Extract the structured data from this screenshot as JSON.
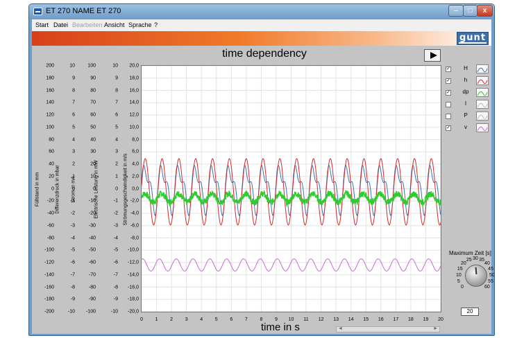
{
  "window": {
    "title": "ET 270 NAME ET 270",
    "min_label": "–",
    "max_label": "□",
    "close_label": "x"
  },
  "menu": {
    "items": [
      {
        "label": "Start",
        "enabled": true
      },
      {
        "label": "Datei",
        "enabled": true
      },
      {
        "label": "Bearbeiten",
        "enabled": false
      },
      {
        "label": "Ansicht",
        "enabled": true
      },
      {
        "label": "Sprache",
        "enabled": true
      },
      {
        "label": "?",
        "enabled": true
      }
    ]
  },
  "logo": {
    "text": "gunt"
  },
  "chart_data": {
    "type": "line",
    "title": "time dependency",
    "xlabel": "time in s",
    "xlim": [
      0,
      20
    ],
    "x_ticks": [
      "0",
      "1",
      "2",
      "3",
      "4",
      "5",
      "6",
      "7",
      "8",
      "9",
      "10",
      "11",
      "12",
      "13",
      "14",
      "15",
      "16",
      "17",
      "18",
      "19",
      "20"
    ],
    "y_axes": [
      {
        "label": "Füllstand  in mm",
        "ticks": [
          "200",
          "180",
          "160",
          "140",
          "120",
          "100",
          "80",
          "60",
          "40",
          "20",
          "0",
          "-20",
          "-40",
          "-60",
          "-80",
          "-100",
          "-120",
          "-140",
          "-160",
          "-180",
          "-200"
        ]
      },
      {
        "label": "Differenzdruck  in mbar",
        "ticks": [
          "10",
          "9",
          "8",
          "7",
          "6",
          "5",
          "4",
          "3",
          "2",
          "1",
          "0",
          "-1",
          "-2",
          "-3",
          "-4",
          "-5",
          "-6",
          "-7",
          "-8",
          "-9",
          "-10"
        ]
      },
      {
        "label": "Strom  in mA",
        "ticks": [
          "100",
          "90",
          "80",
          "70",
          "60",
          "50",
          "40",
          "30",
          "20",
          "10",
          "0",
          "-10",
          "-20",
          "-30",
          "-40",
          "-50",
          "-60",
          "-70",
          "-80",
          "-90",
          "-100"
        ]
      },
      {
        "label": "Electrische Leistung in mW",
        "ticks": [
          "10",
          "9",
          "8",
          "7",
          "6",
          "5",
          "4",
          "3",
          "2",
          "1",
          "0",
          "-1",
          "-2",
          "-3",
          "-4",
          "-5",
          "-6",
          "-7",
          "-8",
          "-9",
          "-10"
        ]
      },
      {
        "label": "Strömungsgeschwindigkeit in m/s",
        "ticks": [
          "20,0",
          "18,0",
          "16,0",
          "14,0",
          "12,0",
          "10,0",
          "8,0",
          "6,0",
          "4,0",
          "2,0",
          "0,0",
          "-2,0",
          "-4,0",
          "-6,0",
          "-8,0",
          "-10,0",
          "-12,0",
          "-14,0",
          "-16,0",
          "-18,0",
          "-20,0"
        ]
      }
    ],
    "ylim": [
      -20,
      20
    ],
    "grid": true,
    "series": [
      {
        "name": "H",
        "color": "#3a6fb5",
        "period": 1.125,
        "mean": 0.2,
        "amplitude": 4.8,
        "shape": "double-hump"
      },
      {
        "name": "h",
        "color": "#d22a2a",
        "period": 1.125,
        "mean": -0.5,
        "amplitude": 5.4,
        "shape": "sine"
      },
      {
        "name": "dp",
        "color": "#2ecc2e",
        "period": 1.125,
        "mean": -1.5,
        "amplitude": 0.7,
        "shape": "noisy"
      },
      {
        "name": "v",
        "color": "#c86ad8",
        "period": 1.125,
        "mean": -12.4,
        "amplitude": 1.0,
        "shape": "sine"
      }
    ]
  },
  "legend": [
    {
      "name": "H",
      "checked": true,
      "color": "#3a6fb5"
    },
    {
      "name": "h",
      "checked": true,
      "color": "#d22a2a"
    },
    {
      "name": "dp",
      "checked": true,
      "color": "#2ecc2e"
    },
    {
      "name": "I",
      "checked": false,
      "color": "#bdbdbd"
    },
    {
      "name": "P",
      "checked": false,
      "color": "#bdbdbd"
    },
    {
      "name": "v",
      "checked": true,
      "color": "#c86ad8"
    }
  ],
  "knob": {
    "title": "Maximum Zeit [s]",
    "scale": [
      "0",
      "5",
      "10",
      "15",
      "20",
      "25",
      "30",
      "35",
      "40",
      "45",
      "50",
      "55",
      "60"
    ],
    "value": "20"
  },
  "check_mark": "✓"
}
